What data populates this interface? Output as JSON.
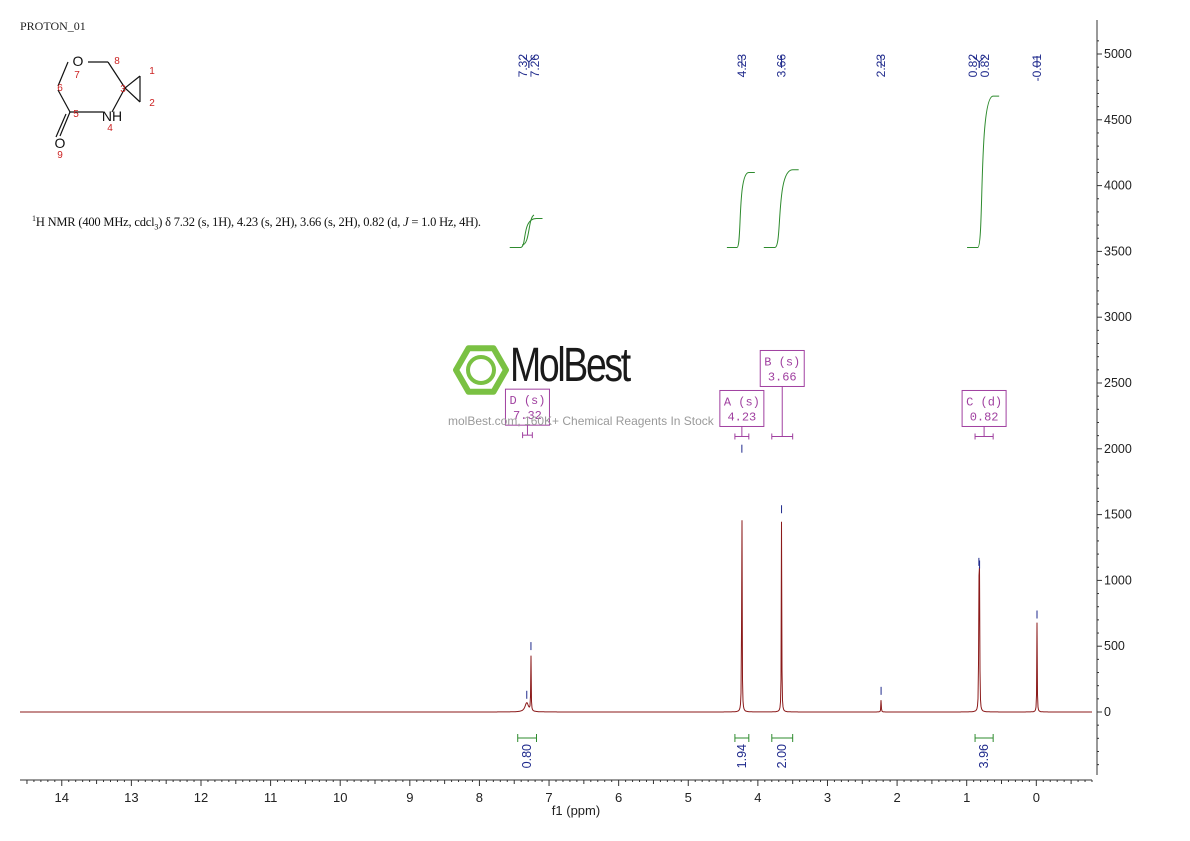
{
  "experiment_label": "PROTON_01",
  "nmr_summary": {
    "nucleus_mass": "1",
    "pre": "H NMR (400 MHz, cdcl",
    "sub": "3",
    "post_a": ") δ 7.32 (s, 1H), 4.23 (s, 2H), 3.66 (s, 2H), 0.82 (d, ",
    "j": "J",
    "post_b": " = 1.0 Hz, 4H)."
  },
  "watermark": {
    "name": "MolBest",
    "tagline": "molBest.com, 160K+ Chemical Reagents In Stock"
  },
  "structure": {
    "atoms": [
      {
        "symbol": "O",
        "number": "7"
      },
      {
        "symbol": "",
        "number": "8"
      },
      {
        "symbol": "",
        "number": "6"
      },
      {
        "symbol": "",
        "number": "3"
      },
      {
        "symbol": "",
        "number": "1"
      },
      {
        "symbol": "",
        "number": "2"
      },
      {
        "symbol": "",
        "number": "5"
      },
      {
        "symbol": "NH",
        "number": "4"
      },
      {
        "symbol": "O",
        "number": "9"
      }
    ]
  },
  "colors": {
    "spectrum": "#8b1a1a",
    "integral": "#2e8b2e",
    "peak_label": "#1f2a8c",
    "multiplet": "#a040a0",
    "axis": "#333333",
    "logo_green": "#7ac143",
    "atom_number": "#cc2222"
  },
  "chart_data": {
    "type": "line",
    "xlabel": "f1 (ppm)",
    "xlim": [
      14.6,
      -0.8
    ],
    "ylim": [
      -500,
      5200
    ],
    "x_ticks": [
      14,
      13,
      12,
      11,
      10,
      9,
      8,
      7,
      6,
      5,
      4,
      3,
      2,
      1,
      0
    ],
    "y_ticks": [
      0,
      500,
      1000,
      1500,
      2000,
      2500,
      3000,
      3500,
      4000,
      4500,
      5000
    ],
    "peaks": [
      {
        "ppm": 7.32,
        "height": 70
      },
      {
        "ppm": 7.26,
        "height": 440
      },
      {
        "ppm": 4.23,
        "height": 1940
      },
      {
        "ppm": 3.66,
        "height": 1480
      },
      {
        "ppm": 2.23,
        "height": 100
      },
      {
        "ppm": 0.825,
        "height": 1080
      },
      {
        "ppm": 0.815,
        "height": 1060
      },
      {
        "ppm": -0.01,
        "height": 680
      }
    ],
    "peak_labels": [
      {
        "text": "7.32",
        "ppm": 7.32
      },
      {
        "text": "7.26",
        "ppm": 7.26
      },
      {
        "text": "4.23",
        "ppm": 4.23
      },
      {
        "text": "3.66",
        "ppm": 3.66
      },
      {
        "text": "2.23",
        "ppm": 2.23
      },
      {
        "text": "0.82",
        "ppm": 0.825
      },
      {
        "text": "0.82",
        "ppm": 0.815
      },
      {
        "text": "-0.01",
        "ppm": -0.01
      }
    ],
    "integrals": [
      {
        "from": 7.45,
        "to": 7.18,
        "value": "0.80",
        "y_start": 3530,
        "y_end": 3750
      },
      {
        "from": 4.33,
        "to": 4.13,
        "value": "1.94",
        "y_start": 3530,
        "y_end": 4100
      },
      {
        "from": 3.8,
        "to": 3.5,
        "value": "2.00",
        "y_start": 3530,
        "y_end": 4120
      },
      {
        "from": 0.88,
        "to": 0.62,
        "value": "3.96",
        "y_start": 3530,
        "y_end": 4680
      }
    ],
    "multiplets": [
      {
        "letter": "D",
        "mult": "(s)",
        "shift": "7.32",
        "from": 7.38,
        "to": 7.24,
        "y": 2210
      },
      {
        "letter": "A",
        "mult": "(s)",
        "shift": "4.23",
        "from": 4.33,
        "to": 4.13,
        "y": 2200
      },
      {
        "letter": "B",
        "mult": "(s)",
        "shift": "3.66",
        "from": 3.8,
        "to": 3.5,
        "y": 2200
      },
      {
        "letter": "C",
        "mult": "(d)",
        "shift": "0.82",
        "from": 0.88,
        "to": 0.62,
        "y": 2200
      }
    ]
  }
}
